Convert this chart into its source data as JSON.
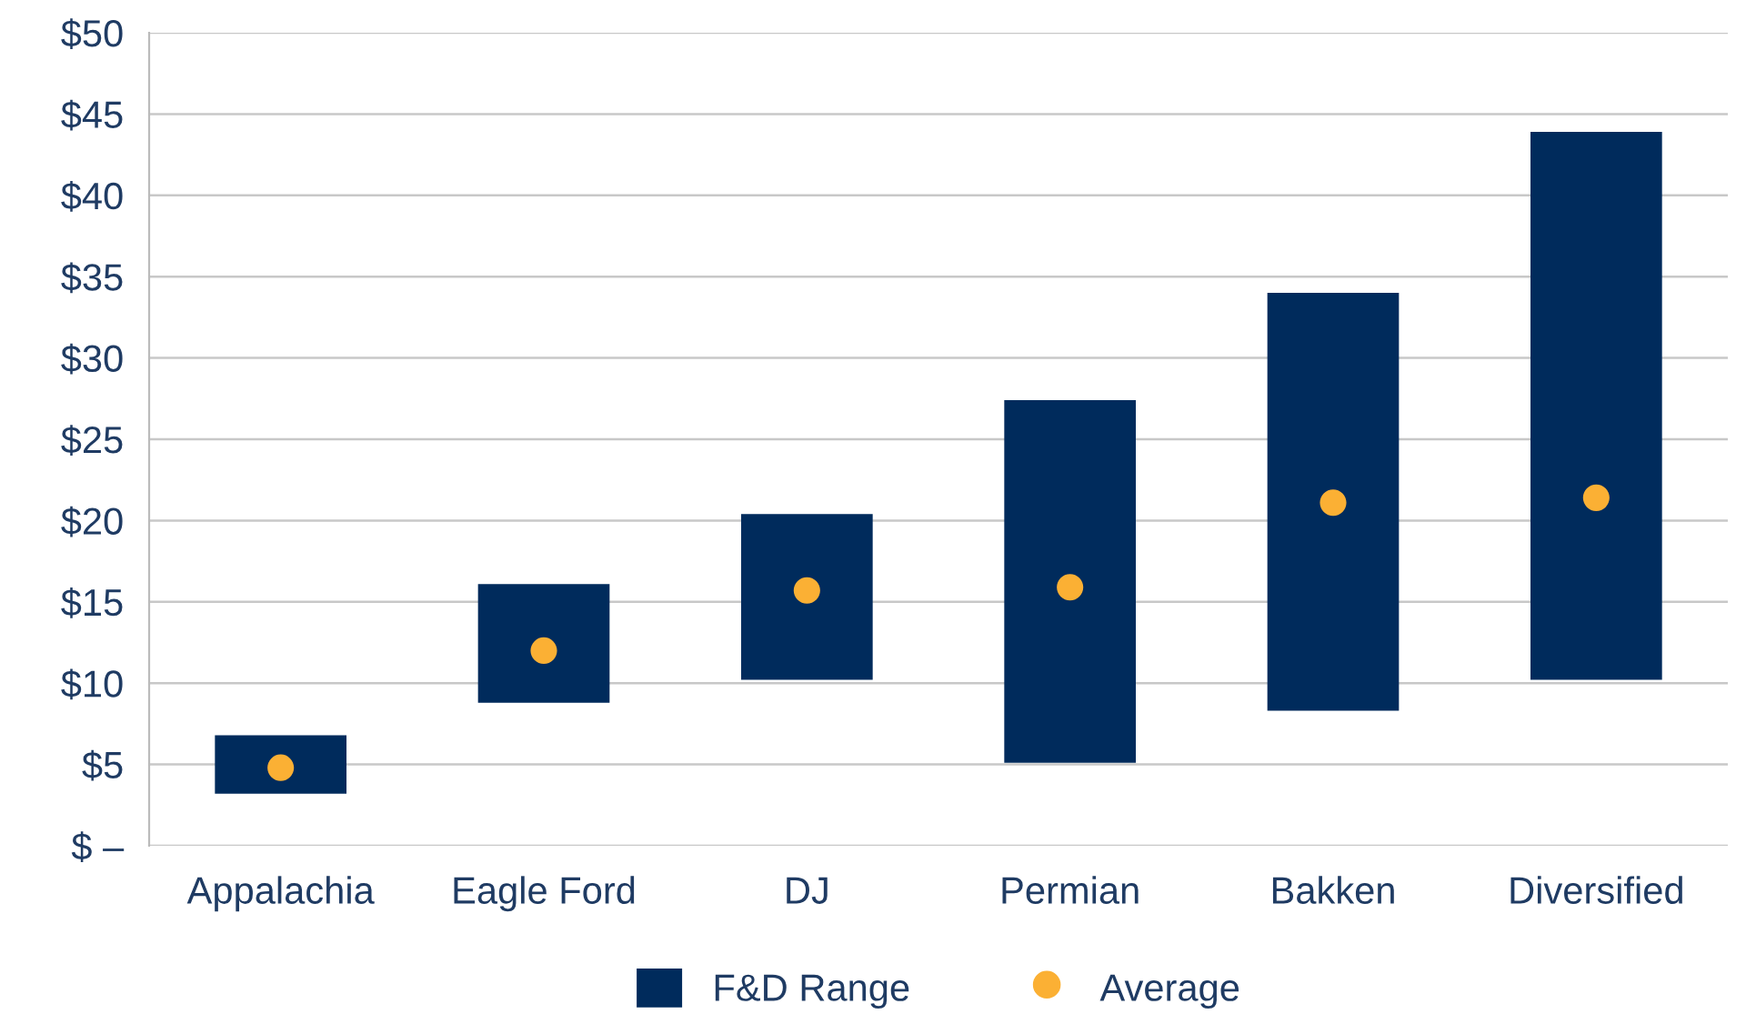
{
  "chart_data": {
    "type": "bar",
    "categories": [
      "Appalachia",
      "Eagle Ford",
      "DJ",
      "Permian",
      "Bakken",
      "Diversified"
    ],
    "series": [
      {
        "name": "F&D Range",
        "color": "#002b5c",
        "base": [
          3.2,
          8.8,
          10.2,
          5.1,
          8.3,
          10.2
        ],
        "values": [
          3.6,
          7.3,
          10.2,
          22.3,
          25.7,
          33.7
        ]
      },
      {
        "name": "Average",
        "type": "scatter",
        "color": "#fbb034",
        "x": [
          "Appalachia",
          "Eagle Ford",
          "DJ",
          "Permian",
          "Bakken",
          "Diversified"
        ],
        "values": [
          4.8,
          12.0,
          15.7,
          15.9,
          21.1,
          21.4
        ]
      }
    ],
    "ylim": [
      0,
      50
    ],
    "yticks": [
      {
        "value": 0,
        "label": "$ –"
      },
      {
        "value": 5,
        "label": "$5"
      },
      {
        "value": 10,
        "label": "$10"
      },
      {
        "value": 15,
        "label": "$15"
      },
      {
        "value": 20,
        "label": "$20"
      },
      {
        "value": 25,
        "label": "$25"
      },
      {
        "value": 30,
        "label": "$30"
      },
      {
        "value": 35,
        "label": "$35"
      },
      {
        "value": 40,
        "label": "$40"
      },
      {
        "value": 45,
        "label": "$45"
      },
      {
        "value": 50,
        "label": "$50"
      }
    ],
    "grid": "y",
    "legend": "bottom",
    "marker": "circle"
  }
}
